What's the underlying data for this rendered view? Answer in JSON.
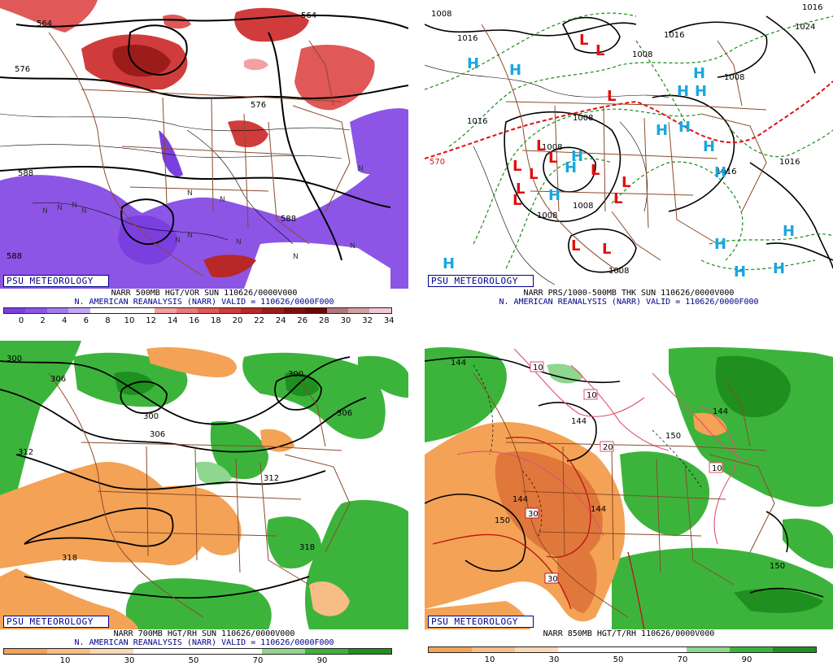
{
  "panels": {
    "p1": {
      "badge": "PSU METEOROLOGY",
      "line1": "NARR 500MB HGT/VOR SUN 110626/0000V000",
      "line2": "N. AMERICAN REANALYSIS (NARR) VALID = 110626/0000F000",
      "contour_labels": [
        "564",
        "576",
        "588",
        "588",
        "564",
        "576",
        "588"
      ],
      "colorbar_ticks": [
        "0",
        "2",
        "4",
        "6",
        "8",
        "10",
        "12",
        "14",
        "16",
        "18",
        "20",
        "22",
        "24",
        "26",
        "28",
        "30",
        "32",
        "34"
      ]
    },
    "p2": {
      "badge": "PSU METEOROLOGY",
      "line1": "NARR PRS/1000-500MB THK SUN 110626/0000V000",
      "line2": "N. AMERICAN REANALYSIS (NARR) VALID = 110626/0000F000",
      "contour_labels": [
        "1008",
        "1016",
        "1016",
        "1008",
        "1016",
        "1008",
        "1008",
        "1016",
        "1016",
        "1016",
        "1024",
        "1008",
        "570",
        "1008",
        "1008",
        "1008"
      ]
    },
    "p3": {
      "badge": "PSU METEOROLOGY",
      "line1": "NARR 700MB HGT/RH SUN 110626/0000V000",
      "line2": "N. AMERICAN REANALYSIS (NARR) VALID = 110626/0000F000",
      "contour_labels": [
        "300",
        "306",
        "300",
        "306",
        "312",
        "318",
        "300",
        "306",
        "312",
        "318"
      ],
      "colorbar_ticks": [
        "10",
        "30",
        "50",
        "70",
        "90"
      ]
    },
    "p4": {
      "badge": "PSU METEOROLOGY",
      "line1": "NARR 850MB HGT/T/RH 110626/0000V000",
      "contour_labels": [
        "144",
        "10",
        "10",
        "144",
        "20",
        "150",
        "10",
        "144",
        "150",
        "30",
        "144",
        "30",
        "150",
        "144"
      ],
      "colorbar_ticks": [
        "10",
        "30",
        "50",
        "70",
        "90"
      ]
    }
  },
  "colors": {
    "vort_scale": [
      "#7b3fe0",
      "#8c55e6",
      "#a37aee",
      "#c2a8f4",
      "#ffffff",
      "#ffffff",
      "#ffffff",
      "#f3a0a0",
      "#ea7a7a",
      "#e05858",
      "#d03c3c",
      "#b82828",
      "#9c1c1c",
      "#801010",
      "#6a0808",
      "#b07878",
      "#d4a0a0",
      "#f2c8d6"
    ],
    "rh_scale": [
      "#f4a255",
      "#f8bd85",
      "#fbd9b4",
      "#ffffff",
      "#ffffff",
      "#ffffff",
      "#8fd68f",
      "#3cb43c",
      "#1f8f1f"
    ],
    "border": "#8b4a2b",
    "low": "#e01010",
    "high": "#18a8e0",
    "thickness": "#1a8a1a",
    "freeze": "#e01010"
  },
  "symbols": {
    "p2_L": [
      "L",
      "L",
      "L",
      "L",
      "L",
      "L",
      "L",
      "L",
      "L",
      "L",
      "L",
      "L",
      "L",
      "L"
    ],
    "p2_H": [
      "H",
      "H",
      "H",
      "H",
      "H",
      "H",
      "H",
      "H",
      "H",
      "H",
      "H",
      "H",
      "H",
      "H",
      "H",
      "H",
      "H"
    ]
  }
}
